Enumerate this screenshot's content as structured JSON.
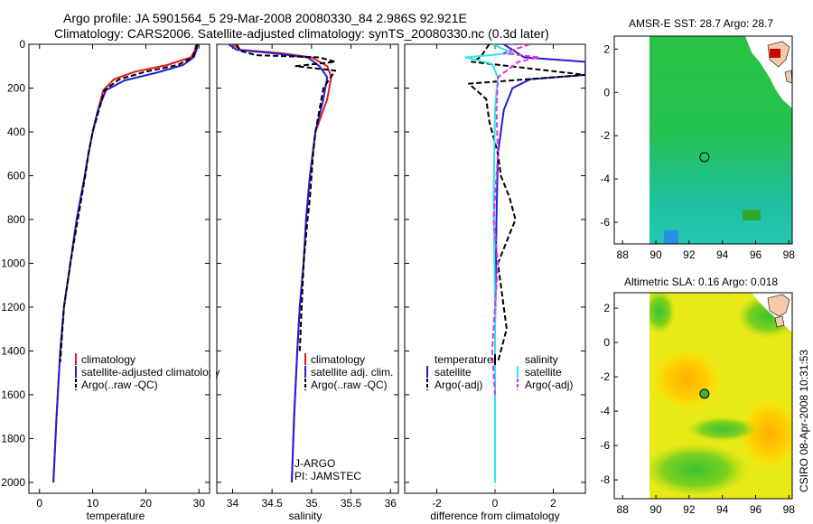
{
  "header": {
    "line1": "Argo profile: JA 5901564_5 29-Mar-2008 20080330_84 2.986S 92.921E",
    "line2": "Climatology: CARS2006. Satellite-adjusted climatology: synTS_20080330.nc (0.3d later)"
  },
  "side_label": "CSIRO 08-Apr-2008 10:31:53",
  "colors": {
    "red": "#e41a1c",
    "blue": "#1f1fd6",
    "black": "#000000",
    "cyan": "#2fe6e6",
    "magenta": "#e032e0"
  },
  "chart_data": [
    {
      "type": "line",
      "name": "temperature-profile",
      "xlabel": "temperature",
      "ylabel": "",
      "xlim": [
        -2,
        32
      ],
      "ylim": [
        0,
        2050
      ],
      "y_inverted": true,
      "xticks": [
        0,
        10,
        20,
        30
      ],
      "yticks": [
        0,
        200,
        400,
        600,
        800,
        1000,
        1200,
        1400,
        1600,
        1800,
        2000
      ],
      "legend": {
        "position": "lower-right",
        "entries": [
          "climatology",
          "satellite-adjusted climatology",
          "Argo(..raw -QC)"
        ]
      },
      "series": [
        {
          "name": "climatology",
          "color": "red",
          "dash": false,
          "x": [
            29.5,
            29.2,
            28.5,
            24,
            18,
            14,
            12,
            11,
            10,
            9.2,
            8.5,
            7,
            5.8,
            4.6,
            3.9,
            3.2,
            2.6
          ],
          "y": [
            0,
            30,
            60,
            95,
            125,
            160,
            210,
            300,
            400,
            500,
            600,
            800,
            1000,
            1200,
            1400,
            1700,
            2000
          ]
        },
        {
          "name": "satellite-adjusted climatology",
          "color": "blue",
          "dash": false,
          "x": [
            29.8,
            29.5,
            29,
            27,
            22,
            16,
            12.5,
            11,
            10,
            9.2,
            8.5,
            7,
            5.8,
            4.6,
            3.9,
            3.2,
            2.6
          ],
          "y": [
            0,
            30,
            60,
            95,
            130,
            165,
            210,
            300,
            400,
            500,
            600,
            800,
            1000,
            1200,
            1400,
            1700,
            2000
          ]
        },
        {
          "name": "Argo(..raw -QC)",
          "color": "black",
          "dash": true,
          "x": [
            29.6,
            29.3,
            28.8,
            26,
            20,
            15,
            12.2,
            11.2,
            10,
            9.2,
            8.6,
            7.2,
            5.8,
            4.6,
            3.9
          ],
          "y": [
            0,
            30,
            60,
            95,
            125,
            160,
            210,
            300,
            400,
            500,
            600,
            800,
            1000,
            1200,
            1450
          ]
        }
      ]
    },
    {
      "type": "line",
      "name": "salinity-profile",
      "xlabel": "salinity",
      "ylabel": "",
      "xlim": [
        33.8,
        36.1
      ],
      "ylim": [
        0,
        2050
      ],
      "y_inverted": true,
      "xticks": [
        34,
        34.5,
        35,
        35.5,
        36
      ],
      "legend": {
        "position": "lower-right",
        "entries": [
          "climatology",
          "satellite adj. clim.",
          "Argo(..raw -QC)"
        ]
      },
      "notes": [
        "J-ARGO",
        "PI: JAMSTEC"
      ],
      "series": [
        {
          "name": "climatology",
          "color": "red",
          "dash": false,
          "x": [
            34.0,
            34.1,
            34.6,
            35.0,
            35.2,
            35.25,
            35.2,
            35.05,
            34.98,
            34.93,
            34.9,
            34.85,
            34.82,
            34.78,
            34.75
          ],
          "y": [
            0,
            25,
            40,
            60,
            100,
            150,
            250,
            400,
            600,
            800,
            1000,
            1200,
            1400,
            1700,
            2000
          ]
        },
        {
          "name": "satellite adj. clim.",
          "color": "blue",
          "dash": false,
          "x": [
            33.95,
            34.05,
            34.5,
            34.95,
            35.1,
            35.2,
            35.15,
            35.05,
            34.98,
            34.93,
            34.9,
            34.85,
            34.82,
            34.78,
            34.75
          ],
          "y": [
            0,
            25,
            40,
            60,
            100,
            150,
            250,
            400,
            600,
            800,
            1000,
            1200,
            1400,
            1700,
            2000
          ]
        },
        {
          "name": "Argo(..raw -QC)",
          "color": "black",
          "dash": true,
          "x": [
            34.05,
            34.1,
            34.3,
            35.1,
            35.3,
            34.8,
            35.3,
            35.15,
            35.1,
            35.05,
            35.02,
            35.0,
            34.98,
            34.95,
            34.9,
            34.85
          ],
          "y": [
            0,
            30,
            50,
            60,
            80,
            100,
            120,
            200,
            300,
            400,
            500,
            600,
            700,
            800,
            1000,
            1400
          ]
        }
      ]
    },
    {
      "type": "line",
      "name": "difference-profile",
      "xlabel": "difference from climatology",
      "ylabel": "",
      "xlim": [
        -3.1,
        3.1
      ],
      "ylim": [
        0,
        2050
      ],
      "y_inverted": true,
      "xticks": [
        -2,
        0,
        2
      ],
      "legend": {
        "position": "lower-center",
        "headers": [
          "temperature",
          "salinity"
        ],
        "entries": [
          "satellite",
          "Argo(-adj)",
          "satellite",
          "Argo(-adj)"
        ]
      },
      "series": [
        {
          "name": "temperature satellite",
          "color": "blue",
          "dash": false,
          "x": [
            0.3,
            1.0,
            3.1,
            3.1,
            1.2,
            0.6,
            0.3,
            0.1,
            0.05,
            0.0,
            0.0
          ],
          "y": [
            0,
            60,
            80,
            140,
            160,
            200,
            300,
            500,
            800,
            1300,
            2000
          ]
        },
        {
          "name": "temperature Argo(-adj)",
          "color": "black",
          "dash": true,
          "x": [
            -0.2,
            -0.5,
            -0.8,
            3.1,
            -0.9,
            -0.3,
            -0.2,
            0.1,
            0.2,
            0.5,
            0.7,
            0.4,
            0.1,
            0.4,
            0.1
          ],
          "y": [
            0,
            60,
            80,
            140,
            180,
            250,
            350,
            500,
            600,
            700,
            800,
            900,
            1000,
            1300,
            1450
          ]
        },
        {
          "name": "salinity satellite",
          "color": "cyan",
          "dash": false,
          "x": [
            -0.1,
            0.6,
            -1.0,
            -0.1,
            0.1,
            0.0,
            -0.05,
            0.0,
            0.0
          ],
          "y": [
            0,
            40,
            60,
            90,
            150,
            300,
            700,
            1200,
            2000
          ]
        },
        {
          "name": "salinity Argo(-adj)",
          "color": "magenta",
          "dash": true,
          "x": [
            1.2,
            0.3,
            1.5,
            0.8,
            0.1,
            0.05,
            0.1,
            0.0,
            -0.05,
            0.1,
            0.0,
            -0.1,
            0.0
          ],
          "y": [
            0,
            40,
            60,
            80,
            150,
            300,
            500,
            700,
            800,
            1000,
            1200,
            1400,
            1600
          ]
        }
      ]
    },
    {
      "type": "heatmap",
      "name": "sst-map",
      "title": "AMSR-E SST: 28.7 Argo: 28.7",
      "xlim": [
        87.5,
        98.2
      ],
      "ylim": [
        -7,
        2.6
      ],
      "xticks": [
        88,
        90,
        92,
        94,
        96,
        98
      ],
      "yticks": [
        -6,
        -4,
        -2,
        0,
        2
      ],
      "data_extent_lon": [
        90,
        98.2
      ],
      "float": {
        "lon": 92.921,
        "lat": -2.986
      },
      "palette": "green"
    },
    {
      "type": "heatmap",
      "name": "sla-map",
      "title": "Altimetric SLA: 0.16 Argo: 0.018",
      "xlim": [
        87.5,
        98.2
      ],
      "ylim": [
        -9.1,
        2.9
      ],
      "xticks": [
        88,
        90,
        92,
        94,
        96,
        98
      ],
      "yticks": [
        -8,
        -6,
        -4,
        -2,
        0,
        2
      ],
      "data_extent_lon": [
        90,
        98.2
      ],
      "float": {
        "lon": 92.921,
        "lat": -2.986
      },
      "palette": "yellow-green"
    }
  ]
}
